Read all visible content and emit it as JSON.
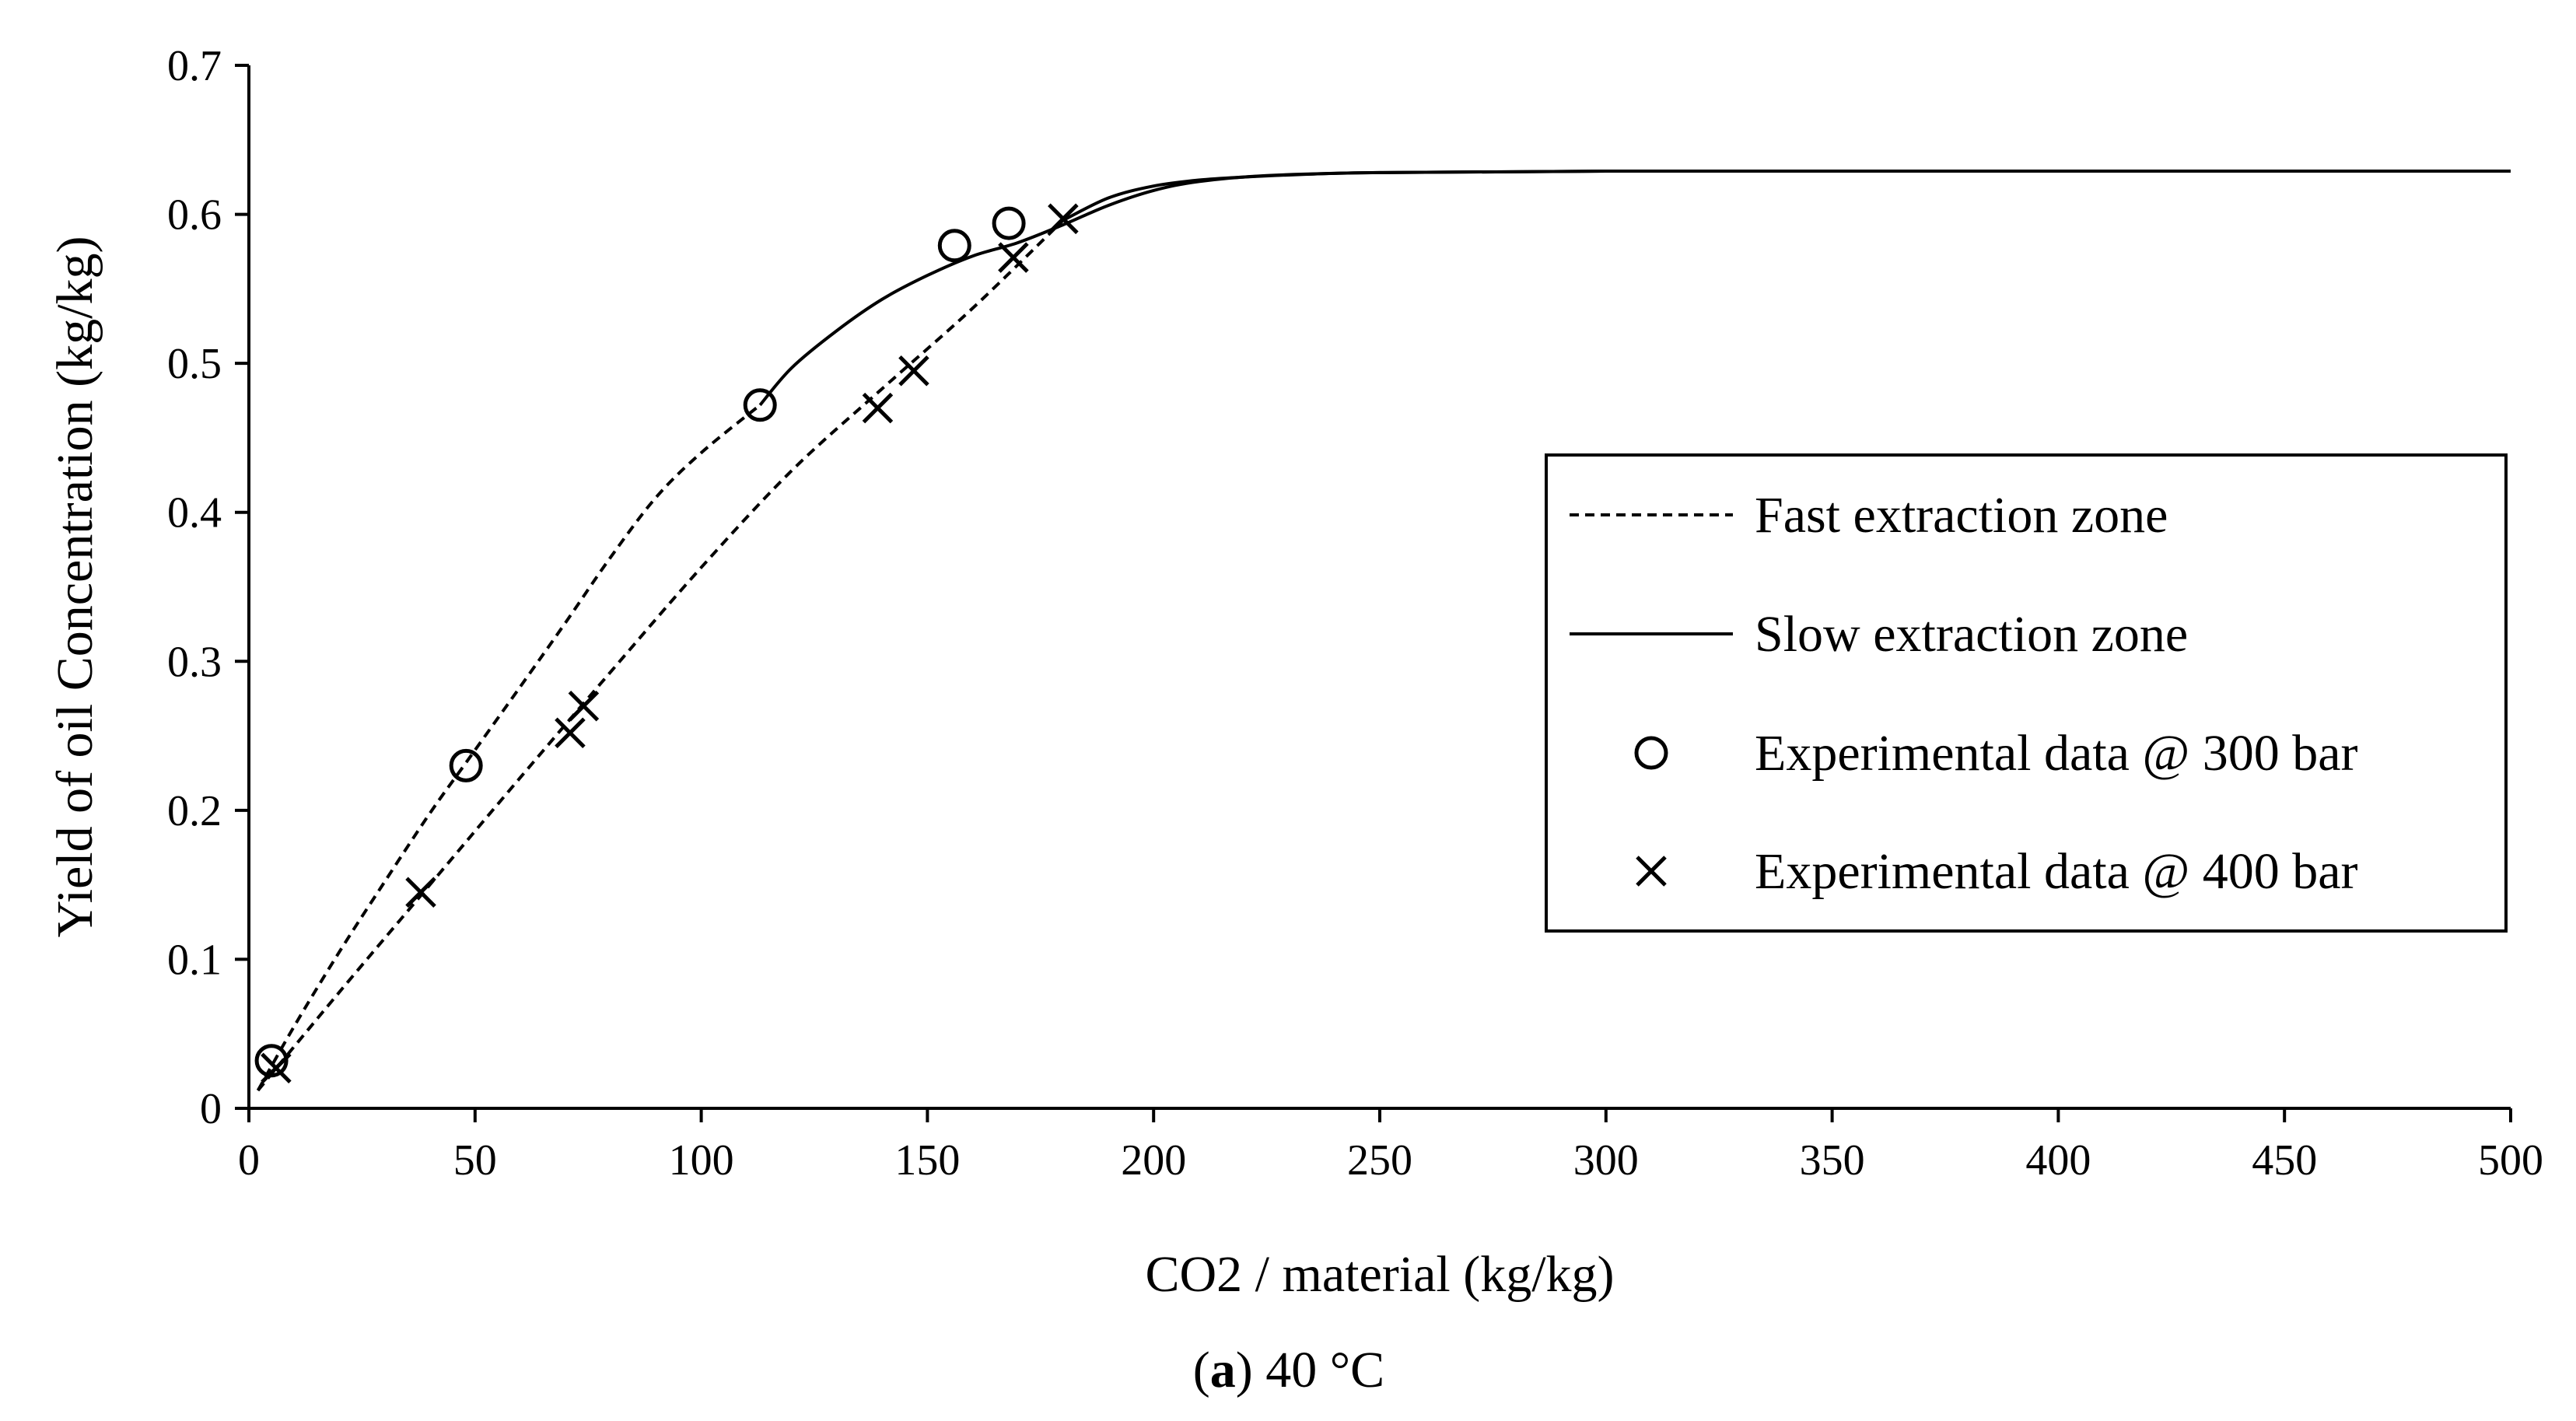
{
  "chart_data": {
    "type": "line",
    "caption_prefix": "(",
    "caption_letter": "a",
    "caption_suffix": ") 40 °C",
    "xlabel": "CO2 / material (kg/kg)",
    "ylabel": "Yield of oil Concentration (kg/kg)",
    "xlim": [
      0,
      500
    ],
    "ylim": [
      0,
      0.7
    ],
    "x_ticks": [
      0,
      50,
      100,
      150,
      200,
      250,
      300,
      350,
      400,
      450,
      500
    ],
    "y_ticks": [
      0,
      0.1,
      0.2,
      0.3,
      0.4,
      0.5,
      0.6,
      0.7
    ],
    "x_tick_labels": [
      "0",
      "50",
      "100",
      "150",
      "200",
      "250",
      "300",
      "350",
      "400",
      "450",
      "500"
    ],
    "y_tick_labels": [
      "0",
      "0.1",
      "0.2",
      "0.3",
      "0.4",
      "0.5",
      "0.6",
      "0.7"
    ],
    "grid": false,
    "legend_position": "right-center",
    "legend": [
      {
        "label": "Fast extraction zone",
        "style": "dashed-line"
      },
      {
        "label": "Slow extraction zone",
        "style": "solid-line"
      },
      {
        "label": "Experimental data @ 300 bar",
        "style": "circle-marker"
      },
      {
        "label": "Experimental data @ 400 bar",
        "style": "x-marker"
      }
    ],
    "series": [
      {
        "name": "Fast extraction zone (300 bar)",
        "style": "dashed",
        "x": [
          2,
          10,
          20,
          30,
          40,
          48,
          60,
          70,
          80,
          90,
          100,
          113
        ],
        "y": [
          0.012,
          0.055,
          0.105,
          0.152,
          0.198,
          0.232,
          0.283,
          0.326,
          0.37,
          0.41,
          0.44,
          0.472
        ]
      },
      {
        "name": "Slow extraction zone (300 bar)",
        "style": "solid",
        "x": [
          113,
          120,
          130,
          140,
          150,
          160,
          170,
          180,
          190,
          200,
          210,
          225,
          250,
          300,
          400,
          500
        ],
        "y": [
          0.472,
          0.497,
          0.522,
          0.543,
          0.559,
          0.572,
          0.581,
          0.593,
          0.606,
          0.616,
          0.622,
          0.626,
          0.628,
          0.629,
          0.629,
          0.629
        ]
      },
      {
        "name": "Fast extraction zone (400 bar)",
        "style": "dashed",
        "x": [
          2,
          20,
          40,
          60,
          80,
          100,
          120,
          140,
          160,
          180
        ],
        "y": [
          0.012,
          0.078,
          0.15,
          0.222,
          0.293,
          0.363,
          0.428,
          0.483,
          0.537,
          0.596
        ]
      },
      {
        "name": "Slow extraction zone (400 bar)",
        "style": "solid",
        "x": [
          180,
          190,
          200,
          210,
          220,
          235,
          250,
          300,
          400,
          500
        ],
        "y": [
          0.596,
          0.611,
          0.619,
          0.623,
          0.625,
          0.627,
          0.628,
          0.629,
          0.629,
          0.629
        ]
      },
      {
        "name": "Experimental data @ 300 bar",
        "style": "circle",
        "x": [
          5,
          48,
          113,
          156,
          168
        ],
        "y": [
          0.032,
          0.23,
          0.472,
          0.579,
          0.594
        ]
      },
      {
        "name": "Experimental data @ 400 bar",
        "style": "x",
        "x": [
          6,
          38,
          71,
          74,
          139,
          147,
          169,
          180
        ],
        "y": [
          0.027,
          0.145,
          0.252,
          0.27,
          0.47,
          0.495,
          0.571,
          0.597
        ]
      }
    ]
  }
}
